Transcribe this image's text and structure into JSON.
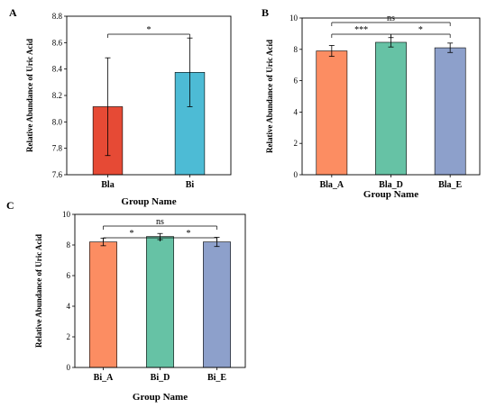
{
  "colors": {
    "orange_red": "#E64A35",
    "sky_blue": "#4DBBD5",
    "salmon": "#FC8D62",
    "teal": "#66C2A5",
    "lavender": "#8DA0CB"
  },
  "chart_data": [
    {
      "panel": "A",
      "type": "bar",
      "categories": [
        "Bla",
        "Bi"
      ],
      "values": [
        8.115,
        8.375
      ],
      "errors": [
        0.37,
        0.26
      ],
      "colors": [
        "#E64A35",
        "#4DBBD5"
      ],
      "xlabel": "Group Name",
      "ylabel": "Relative Abundance of Uric Acid",
      "ylim": [
        7.6,
        8.8
      ],
      "yticks": [
        7.6,
        7.8,
        8.0,
        8.2,
        8.4,
        8.6,
        8.8
      ],
      "grid": false,
      "significance": [
        {
          "from": 0,
          "to": 1,
          "label": "*",
          "level": 0
        }
      ]
    },
    {
      "panel": "B",
      "type": "bar",
      "categories": [
        "Bla_A",
        "Bla_D",
        "Bla_E"
      ],
      "values": [
        7.9,
        8.45,
        8.1
      ],
      "errors": [
        0.35,
        0.3,
        0.3
      ],
      "colors": [
        "#FC8D62",
        "#66C2A5",
        "#8DA0CB"
      ],
      "xlabel": "Group Name",
      "ylabel": "Relative Abundance of Uric Acid",
      "ylim": [
        0,
        10
      ],
      "yticks": [
        0,
        2,
        4,
        6,
        8,
        10
      ],
      "grid": false,
      "significance": [
        {
          "from": 0,
          "to": 1,
          "label": "***",
          "level": 0
        },
        {
          "from": 1,
          "to": 2,
          "label": "*",
          "level": 0
        },
        {
          "from": 0,
          "to": 2,
          "label": "ns",
          "level": 1
        }
      ]
    },
    {
      "panel": "C",
      "type": "bar",
      "categories": [
        "Bi_A",
        "Bi_D",
        "Bi_E"
      ],
      "values": [
        8.2,
        8.55,
        8.2
      ],
      "errors": [
        0.25,
        0.2,
        0.3
      ],
      "colors": [
        "#FC8D62",
        "#66C2A5",
        "#8DA0CB"
      ],
      "xlabel": "Group Name",
      "ylabel": "Relative Abundance of Uric Acid",
      "ylim": [
        0,
        10
      ],
      "yticks": [
        0,
        2,
        4,
        6,
        8,
        10
      ],
      "grid": false,
      "significance": [
        {
          "from": 0,
          "to": 1,
          "label": "*",
          "level": 0
        },
        {
          "from": 1,
          "to": 2,
          "label": "*",
          "level": 0
        },
        {
          "from": 0,
          "to": 2,
          "label": "ns",
          "level": 1
        }
      ]
    }
  ]
}
